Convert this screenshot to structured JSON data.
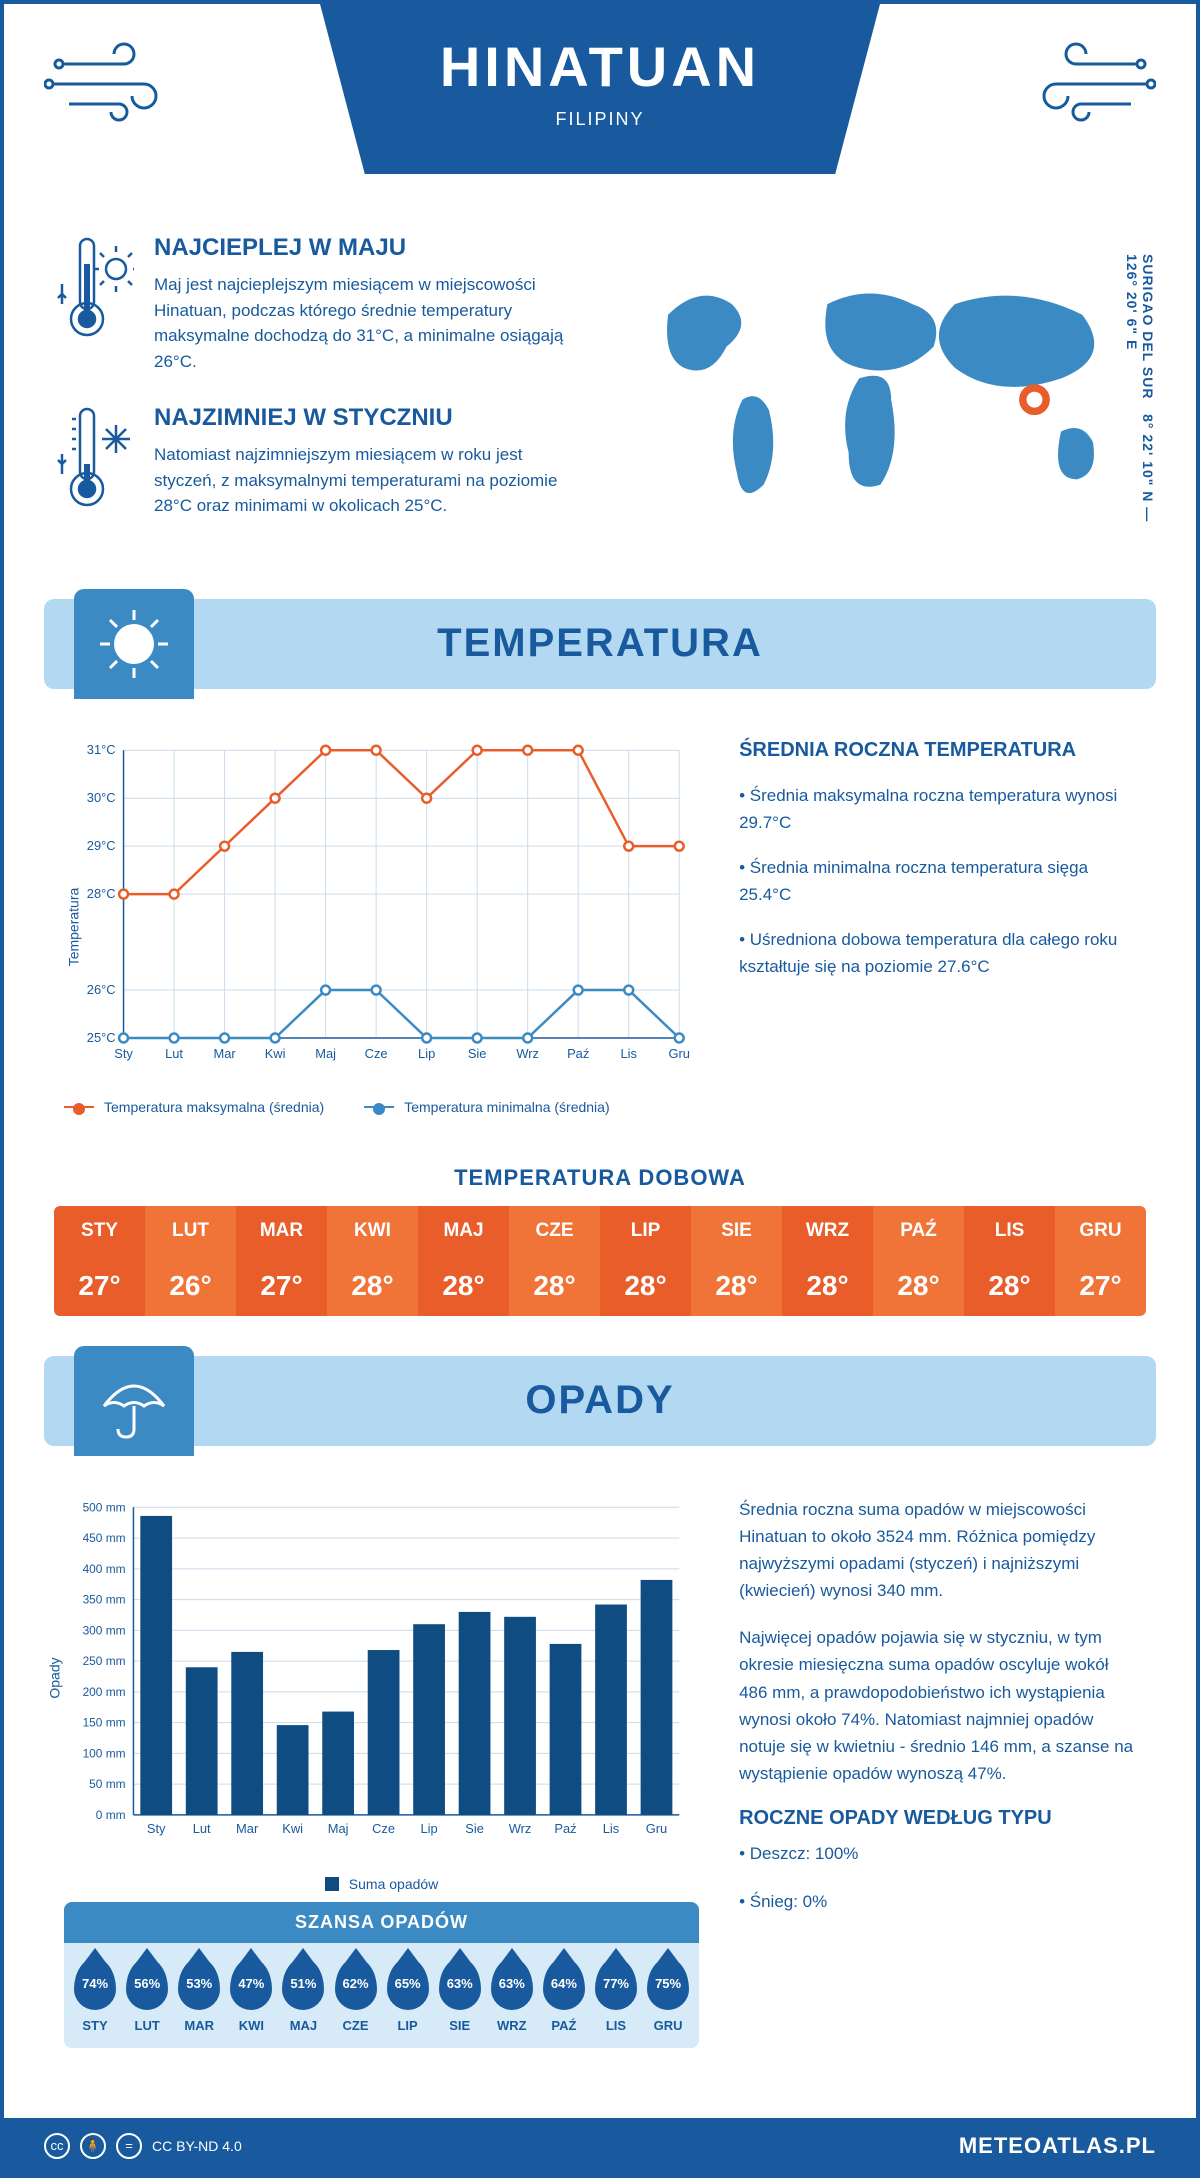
{
  "theme": {
    "primary": "#185a9d",
    "secondary": "#3b8ac4",
    "light": "#b3d9f2",
    "lighter": "#d6eaf8",
    "orange": "#e85d2a",
    "orange_dark": "#d94f1a",
    "orange_light": "#f07438",
    "bar_color": "#0f4c81",
    "grid": "#c9dcec"
  },
  "header": {
    "title": "HINATUAN",
    "subtitle": "FILIPINY"
  },
  "location": {
    "region": "SURIGAO DEL SUR",
    "coords": "8° 22' 10\" N — 126° 20' 6\" E",
    "marker_color": "#e85d2a"
  },
  "top": {
    "warm": {
      "title": "NAJCIEPLEJ W MAJU",
      "text": "Maj jest najcieplejszym miesiącem w miejscowości Hinatuan, podczas którego średnie temperatury maksymalne dochodzą do 31°C, a minimalne osiągają 26°C."
    },
    "cold": {
      "title": "NAJZIMNIEJ W STYCZNIU",
      "text": "Natomiast najzimniejszym miesiącem w roku jest styczeń, z maksymalnymi temperaturami na poziomie 28°C oraz minimami w okolicach 25°C."
    }
  },
  "sections": {
    "temperature": "TEMPERATURA",
    "precip": "OPADY"
  },
  "temp_chart": {
    "months": [
      "Sty",
      "Lut",
      "Mar",
      "Kwi",
      "Maj",
      "Cze",
      "Lip",
      "Sie",
      "Wrz",
      "Paź",
      "Lis",
      "Gru"
    ],
    "max_series": {
      "label": "Temperatura maksymalna (średnia)",
      "color": "#e85d2a",
      "values": [
        28,
        28,
        29,
        30,
        31,
        31,
        30,
        31,
        31,
        31,
        29,
        29
      ]
    },
    "min_series": {
      "label": "Temperatura minimalna (średnia)",
      "color": "#3b8ac4",
      "values": [
        25,
        25,
        25,
        25,
        26,
        26,
        25,
        25,
        25,
        26,
        26,
        25
      ]
    },
    "y_label": "Temperatura",
    "y_ticks": [
      "25°C",
      "26°C",
      "28°C",
      "29°C",
      "30°C",
      "31°C"
    ],
    "ymin": 25,
    "ymax": 31
  },
  "temp_stats": {
    "title": "ŚREDNIA ROCZNA TEMPERATURA",
    "b1": "• Średnia maksymalna roczna temperatura wynosi 29.7°C",
    "b2": "• Średnia minimalna roczna temperatura sięga 25.4°C",
    "b3": "• Uśredniona dobowa temperatura dla całego roku kształtuje się na poziomie 27.6°C"
  },
  "daily": {
    "title": "TEMPERATURA DOBOWA",
    "months": [
      "STY",
      "LUT",
      "MAR",
      "KWI",
      "MAJ",
      "CZE",
      "LIP",
      "SIE",
      "WRZ",
      "PAŹ",
      "LIS",
      "GRU"
    ],
    "values": [
      "27°",
      "26°",
      "27°",
      "28°",
      "28°",
      "28°",
      "28°",
      "28°",
      "28°",
      "28°",
      "28°",
      "27°"
    ]
  },
  "precip_chart": {
    "y_label": "Opady",
    "months": [
      "Sty",
      "Lut",
      "Mar",
      "Kwi",
      "Maj",
      "Cze",
      "Lip",
      "Sie",
      "Wrz",
      "Paź",
      "Lis",
      "Gru"
    ],
    "values": [
      486,
      240,
      265,
      146,
      168,
      268,
      310,
      330,
      322,
      278,
      342,
      382
    ],
    "ymax": 500,
    "ytick_step": 50,
    "legend": "Suma opadów",
    "bar_color": "#0f4c81"
  },
  "precip_text": {
    "p1": "Średnia roczna suma opadów w miejscowości Hinatuan to około 3524 mm. Różnica pomiędzy najwyższymi opadami (styczeń) i najniższymi (kwiecień) wynosi 340 mm.",
    "p2": "Najwięcej opadów pojawia się w styczniu, w tym okresie miesięczna suma opadów oscyluje wokół 486 mm, a prawdopodobieństwo ich wystąpienia wynosi około 74%. Natomiast najmniej opadów notuje się w kwietniu - średnio 146 mm, a szanse na wystąpienie opadów wynoszą 47%.",
    "title": "ROCZNE OPADY WEDŁUG TYPU",
    "b1": "• Deszcz: 100%",
    "b2": "• Śnieg: 0%"
  },
  "chance": {
    "title": "SZANSA OPADÓW",
    "months": [
      "STY",
      "LUT",
      "MAR",
      "KWI",
      "MAJ",
      "CZE",
      "LIP",
      "SIE",
      "WRZ",
      "PAŹ",
      "LIS",
      "GRU"
    ],
    "values": [
      "74%",
      "56%",
      "53%",
      "47%",
      "51%",
      "62%",
      "65%",
      "63%",
      "63%",
      "64%",
      "77%",
      "75%"
    ]
  },
  "footer": {
    "license": "CC BY-ND 4.0",
    "brand": "METEOATLAS.PL"
  }
}
